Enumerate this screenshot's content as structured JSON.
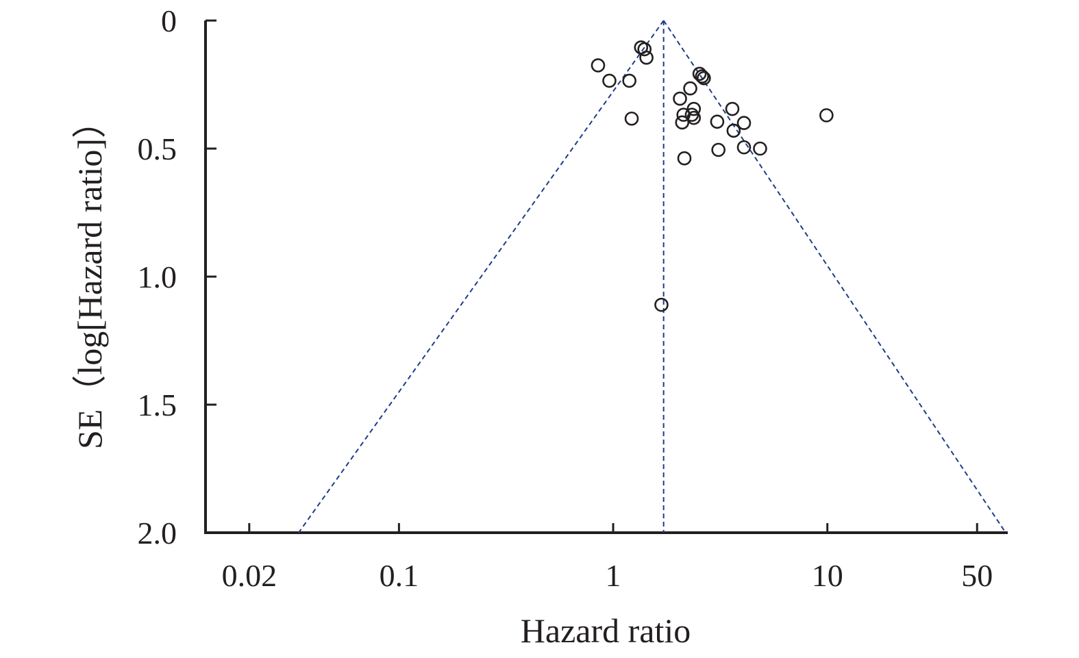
{
  "colors": {
    "axis": "#231f20",
    "funnel": "#1f3a8a",
    "marker": "#231f20",
    "background": "#ffffff"
  },
  "chart_data": {
    "type": "scatter",
    "title": "",
    "xlabel": "Hazard ratio",
    "ylabel": "SE（log[Hazard ratio]）",
    "x_scale": "log",
    "y_reversed": true,
    "xlim": [
      0.0125,
      68
    ],
    "ylim": [
      0,
      2.0
    ],
    "x_ticks": [
      0.02,
      0.1,
      1,
      10,
      50
    ],
    "x_tick_labels": [
      "0.02",
      "0.1",
      "1",
      "10",
      "50"
    ],
    "y_ticks": [
      0,
      0.5,
      1.0,
      1.5,
      2.0
    ],
    "y_tick_labels": [
      "0",
      "0.5",
      "1.0",
      "1.5",
      "2.0"
    ],
    "grid": false,
    "legend": "none",
    "marker": "open-circle",
    "pooled_estimate": 1.72,
    "funnel_limits": {
      "lower_at_se_2": 0.034,
      "upper_at_se_2": 68
    },
    "points": [
      {
        "x": 1.35,
        "y": 0.105
      },
      {
        "x": 1.4,
        "y": 0.112
      },
      {
        "x": 1.43,
        "y": 0.145
      },
      {
        "x": 0.85,
        "y": 0.175
      },
      {
        "x": 0.96,
        "y": 0.235
      },
      {
        "x": 1.19,
        "y": 0.235
      },
      {
        "x": 2.53,
        "y": 0.208
      },
      {
        "x": 2.6,
        "y": 0.218
      },
      {
        "x": 2.65,
        "y": 0.225
      },
      {
        "x": 2.29,
        "y": 0.265
      },
      {
        "x": 2.05,
        "y": 0.305
      },
      {
        "x": 2.38,
        "y": 0.345
      },
      {
        "x": 3.6,
        "y": 0.345
      },
      {
        "x": 2.13,
        "y": 0.368
      },
      {
        "x": 2.33,
        "y": 0.368
      },
      {
        "x": 2.38,
        "y": 0.38
      },
      {
        "x": 1.22,
        "y": 0.383
      },
      {
        "x": 2.1,
        "y": 0.398
      },
      {
        "x": 3.06,
        "y": 0.395
      },
      {
        "x": 4.08,
        "y": 0.4
      },
      {
        "x": 3.65,
        "y": 0.43
      },
      {
        "x": 4.08,
        "y": 0.495
      },
      {
        "x": 4.85,
        "y": 0.5
      },
      {
        "x": 3.1,
        "y": 0.505
      },
      {
        "x": 2.15,
        "y": 0.538
      },
      {
        "x": 9.9,
        "y": 0.37
      },
      {
        "x": 1.68,
        "y": 1.11
      }
    ]
  }
}
